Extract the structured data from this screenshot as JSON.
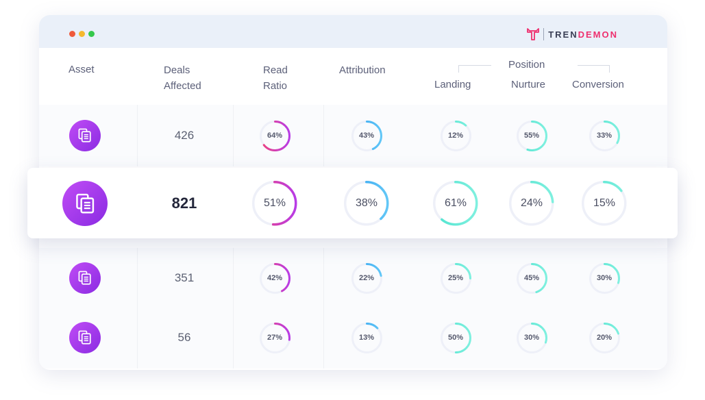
{
  "window": {
    "traffic_lights": [
      "#ef5a3b",
      "#f5b82e",
      "#35c84c"
    ],
    "brand": {
      "prefix": "TREN",
      "suffix": "DEMON",
      "accent": "#ee2f6e"
    }
  },
  "columns": {
    "asset": "Asset",
    "deals": [
      "Deals",
      "Affected"
    ],
    "read": [
      "Read",
      "Ratio"
    ],
    "attribution": "Attribution",
    "position_group": "Position",
    "landing": "Landing",
    "nurture": "Nurture",
    "conversion": "Conversion"
  },
  "colors": {
    "read": [
      "#f0427b",
      "#b83ce6"
    ],
    "attribution": [
      "#2ea0f0",
      "#62c7f7"
    ],
    "position": [
      "#4fe4cf",
      "#7ff0df"
    ],
    "track": "#eef0f8"
  },
  "rows": [
    {
      "icon": "document-icon",
      "deals": "426",
      "read": "64%",
      "attribution": "43%",
      "landing": "12%",
      "nurture": "55%",
      "conversion": "33%",
      "highlighted": false
    },
    {
      "icon": "document-icon",
      "deals": "821",
      "read": "51%",
      "attribution": "38%",
      "landing": "61%",
      "nurture": "24%",
      "conversion": "15%",
      "highlighted": true
    },
    {
      "icon": "document-icon",
      "deals": "351",
      "read": "42%",
      "attribution": "22%",
      "landing": "25%",
      "nurture": "45%",
      "conversion": "30%",
      "highlighted": false
    },
    {
      "icon": "document-icon",
      "deals": "56",
      "read": "27%",
      "attribution": "13%",
      "landing": "50%",
      "nurture": "30%",
      "conversion": "20%",
      "highlighted": false
    }
  ]
}
